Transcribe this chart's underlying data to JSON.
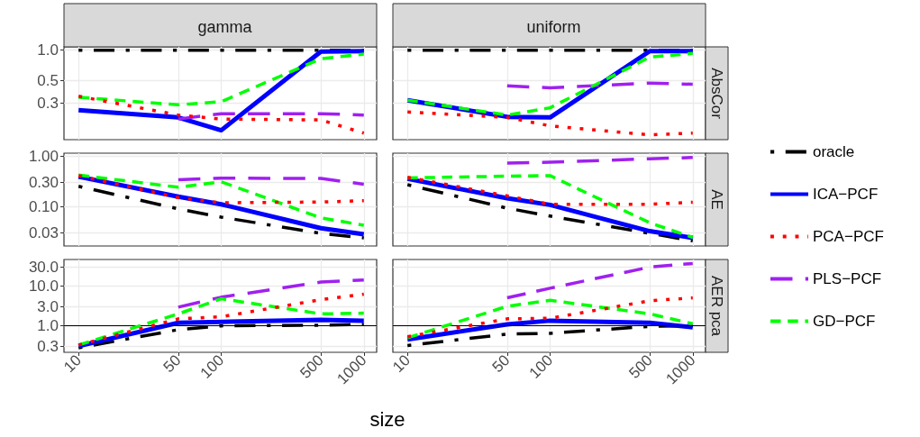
{
  "chart_data": [
    {
      "type": "line",
      "title": "gamma",
      "x": [
        10,
        50,
        100,
        500,
        1000
      ],
      "xlim": [
        7.9,
        1230
      ],
      "xticks": [
        10,
        50,
        100,
        500,
        1000
      ],
      "ylim": [
        0.13,
        1.08
      ],
      "yticks": [
        {
          "value": 0.3,
          "label": "0.3"
        },
        {
          "value": 0.5,
          "label": "0.5"
        },
        {
          "value": 1,
          "label": "1.0"
        }
      ],
      "log": "xy",
      "grid": true,
      "tick_labels": "y",
      "marker": "none",
      "series": [
        {
          "color": "#000000",
          "line_style": "dashdot",
          "values": [
            1,
            1,
            1,
            1,
            1
          ]
        },
        {
          "color": "#0000ff",
          "line_style": "solid",
          "values": [
            0.255,
            0.216,
            0.161,
            0.97,
            0.98
          ]
        },
        {
          "color": "#ff0000",
          "line_style": "dotted",
          "values": [
            0.35,
            0.228,
            0.208,
            0.204,
            0.151
          ]
        },
        {
          "color": "#a020f0",
          "line_style": "longdash",
          "values": [
            null,
            0.208,
            0.235,
            0.235,
            0.228
          ]
        },
        {
          "color": "#00ff00",
          "line_style": "dashed",
          "values": [
            0.342,
            0.288,
            0.309,
            0.825,
            0.915
          ]
        }
      ]
    },
    {
      "type": "line",
      "title": "uniform",
      "annotations": [
        "AbsCor"
      ],
      "x": [
        10,
        50,
        100,
        500,
        1000
      ],
      "xlim": [
        7.9,
        1230
      ],
      "xticks": [
        10,
        50,
        100,
        500,
        1000
      ],
      "ylim": [
        0.13,
        1.08
      ],
      "yticks": [
        0.3,
        0.5,
        1
      ],
      "log": "xy",
      "grid": true,
      "tick_labels": false,
      "marker": "none",
      "legend": "right",
      "series": [
        {
          "name": "oracle",
          "color": "#000000",
          "line_style": "dashdot",
          "values": [
            1,
            1,
            1,
            1,
            1
          ]
        },
        {
          "name": "ICA−PCF",
          "color": "#0000ff",
          "line_style": "solid",
          "values": [
            0.32,
            0.219,
            0.216,
            0.98,
            0.98
          ]
        },
        {
          "name": "PCA−PCF",
          "color": "#ff0000",
          "line_style": "dotted",
          "values": [
            0.244,
            0.216,
            0.178,
            0.145,
            0.151
          ]
        },
        {
          "name": "PLS−PCF",
          "color": "#a020f0",
          "line_style": "longdash",
          "values": [
            null,
            0.444,
            0.424,
            0.473,
            0.46
          ]
        },
        {
          "name": "GD−PCF",
          "color": "#00ff00",
          "line_style": "dashed",
          "values": [
            0.32,
            0.228,
            0.269,
            0.855,
            0.93
          ]
        }
      ]
    },
    {
      "type": "line",
      "x": [
        10,
        50,
        100,
        500,
        1000
      ],
      "xlim": [
        7.9,
        1230
      ],
      "xticks": [
        10,
        50,
        100,
        500,
        1000
      ],
      "ylim": [
        0.0162,
        1.15
      ],
      "yticks": [
        {
          "value": 0.03,
          "label": "0.03"
        },
        {
          "value": 0.1,
          "label": "0.10"
        },
        {
          "value": 0.3,
          "label": "0.30"
        },
        {
          "value": 1,
          "label": "1.00"
        }
      ],
      "log": "xy",
      "grid": true,
      "tick_labels": "y",
      "marker": "none",
      "series": [
        {
          "color": "#000000",
          "line_style": "dashdot",
          "values": [
            0.251,
            0.089,
            0.061,
            0.029,
            0.0235
          ]
        },
        {
          "color": "#0000ff",
          "line_style": "solid",
          "values": [
            0.39,
            0.156,
            0.11,
            0.0366,
            0.0278
          ]
        },
        {
          "color": "#ff0000",
          "line_style": "dotted",
          "values": [
            0.41,
            0.149,
            0.118,
            0.122,
            0.13
          ]
        },
        {
          "color": "#a020f0",
          "line_style": "longdash",
          "values": [
            null,
            0.34,
            0.365,
            0.36,
            0.277
          ]
        },
        {
          "color": "#00ff00",
          "line_style": "dashed",
          "values": [
            0.42,
            0.241,
            0.31,
            0.059,
            0.042
          ]
        }
      ]
    },
    {
      "type": "line",
      "annotations": [
        "AE"
      ],
      "x": [
        10,
        50,
        100,
        500,
        1000
      ],
      "xlim": [
        7.9,
        1230
      ],
      "xticks": [
        10,
        50,
        100,
        500,
        1000
      ],
      "ylim": [
        0.0162,
        1.15
      ],
      "yticks": [
        0.03,
        0.1,
        0.3,
        1
      ],
      "log": "xy",
      "grid": true,
      "tick_labels": false,
      "marker": "none",
      "series": [
        {
          "color": "#000000",
          "line_style": "dashdot",
          "values": [
            0.27,
            0.092,
            0.064,
            0.029,
            0.0205
          ]
        },
        {
          "color": "#0000ff",
          "line_style": "solid",
          "values": [
            0.355,
            0.145,
            0.107,
            0.032,
            0.0235
          ]
        },
        {
          "color": "#ff0000",
          "line_style": "dotted",
          "values": [
            0.38,
            0.162,
            0.11,
            0.11,
            0.121
          ]
        },
        {
          "color": "#a020f0",
          "line_style": "longdash",
          "values": [
            null,
            0.73,
            0.76,
            0.89,
            0.94
          ]
        },
        {
          "color": "#00ff00",
          "line_style": "dashed",
          "values": [
            0.37,
            0.4,
            0.41,
            0.047,
            0.024
          ]
        }
      ]
    },
    {
      "type": "line",
      "xlabel": "size",
      "x": [
        10,
        50,
        100,
        500,
        1000
      ],
      "xlim": [
        7.9,
        1230
      ],
      "xticks": [
        10,
        50,
        100,
        500,
        1000
      ],
      "ylim": [
        0.216,
        46.6
      ],
      "yticks": [
        {
          "value": 0.3,
          "label": "0.3"
        },
        {
          "value": 1,
          "label": "1.0"
        },
        {
          "value": 3,
          "label": "3.0"
        },
        {
          "value": 10,
          "label": "10.0"
        },
        {
          "value": 30,
          "label": "30.0"
        }
      ],
      "log": "xy",
      "grid": true,
      "marker": "none",
      "ref_lines": [
        {
          "axis": "y",
          "value": 1,
          "color": "#000000"
        }
      ],
      "series": [
        {
          "color": "#000000",
          "line_style": "dashdot",
          "values": [
            0.28,
            0.8,
            1.0,
            1.04,
            1.09
          ]
        },
        {
          "color": "#0000ff",
          "line_style": "solid",
          "values": [
            0.31,
            1.19,
            1.26,
            1.42,
            1.35
          ]
        },
        {
          "color": "#ff0000",
          "line_style": "dotted",
          "values": [
            0.33,
            1.5,
            1.69,
            4.56,
            6.25
          ]
        },
        {
          "color": "#a020f0",
          "line_style": "longdash",
          "values": [
            null,
            2.95,
            5.25,
            12.6,
            14.2
          ]
        },
        {
          "color": "#00ff00",
          "line_style": "dashed",
          "values": [
            0.33,
            2.0,
            4.8,
            2.0,
            2.08
          ]
        }
      ]
    },
    {
      "type": "line",
      "annotations": [
        "AER pca"
      ],
      "x": [
        10,
        50,
        100,
        500,
        1000
      ],
      "xlim": [
        7.9,
        1230
      ],
      "xticks": [
        10,
        50,
        100,
        500,
        1000
      ],
      "ylim": [
        0.216,
        46.6
      ],
      "yticks": [
        0.3,
        1,
        3,
        10,
        30
      ],
      "log": "xy",
      "grid": true,
      "tick_labels": "x",
      "marker": "none",
      "ref_lines": [
        {
          "axis": "y",
          "value": 1,
          "color": "#000000"
        }
      ],
      "series": [
        {
          "color": "#000000",
          "line_style": "dashdot",
          "values": [
            0.32,
            0.62,
            0.65,
            0.97,
            1.0
          ]
        },
        {
          "color": "#0000ff",
          "line_style": "solid",
          "values": [
            0.456,
            1.09,
            1.35,
            1.19,
            0.92
          ]
        },
        {
          "color": "#ff0000",
          "line_style": "dotted",
          "values": [
            0.53,
            1.5,
            1.55,
            4.26,
            5.06
          ]
        },
        {
          "color": "#a020f0",
          "line_style": "longdash",
          "values": [
            null,
            5.06,
            8.85,
            30,
            37
          ]
        },
        {
          "color": "#00ff00",
          "line_style": "dashed",
          "values": [
            0.5,
            3.1,
            4.4,
            2.0,
            1.13
          ]
        }
      ]
    }
  ]
}
